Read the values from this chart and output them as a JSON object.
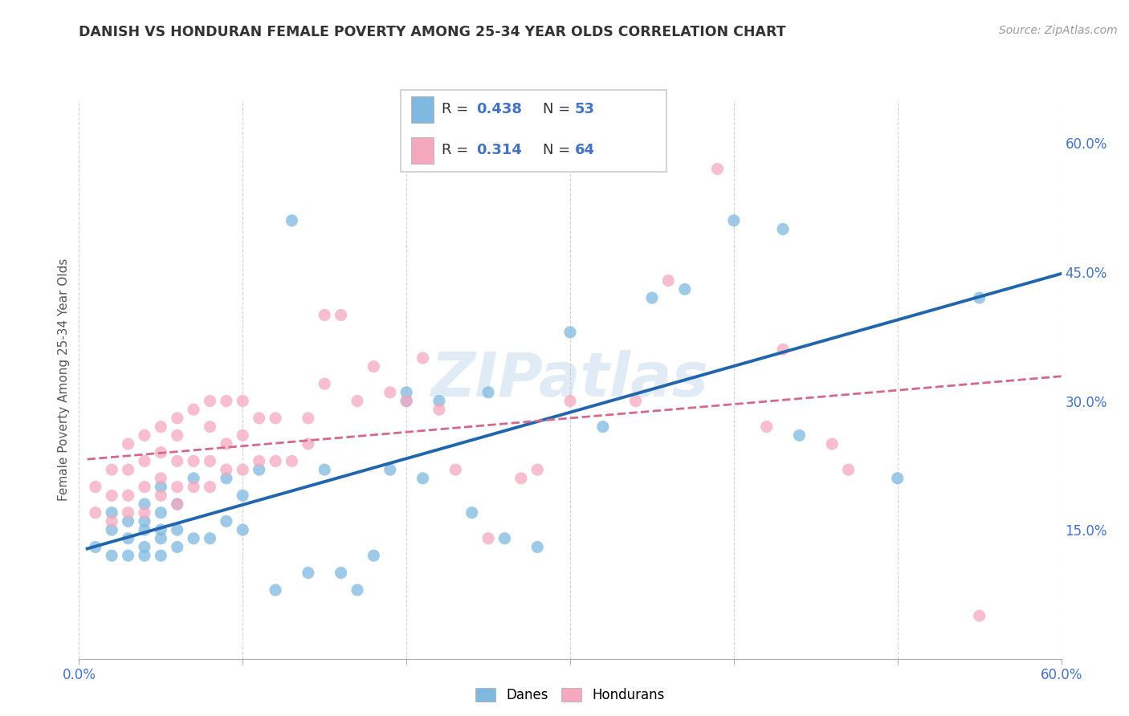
{
  "title": "DANISH VS HONDURAN FEMALE POVERTY AMONG 25-34 YEAR OLDS CORRELATION CHART",
  "source": "Source: ZipAtlas.com",
  "ylabel": "Female Poverty Among 25-34 Year Olds",
  "xlim": [
    0.0,
    0.6
  ],
  "ylim": [
    0.0,
    0.65
  ],
  "danes_color": "#7fb9e0",
  "hondurans_color": "#f4a9bf",
  "danes_line_color": "#2166ac",
  "hondurans_line_color": "#d4698a",
  "R_danes": 0.438,
  "N_danes": 53,
  "R_hondurans": 0.314,
  "N_hondurans": 64,
  "watermark": "ZIPatlas",
  "danes_scatter_x": [
    0.01,
    0.02,
    0.02,
    0.02,
    0.03,
    0.03,
    0.03,
    0.04,
    0.04,
    0.04,
    0.04,
    0.04,
    0.05,
    0.05,
    0.05,
    0.05,
    0.05,
    0.06,
    0.06,
    0.06,
    0.07,
    0.07,
    0.08,
    0.09,
    0.09,
    0.1,
    0.1,
    0.11,
    0.12,
    0.13,
    0.14,
    0.15,
    0.16,
    0.17,
    0.18,
    0.19,
    0.2,
    0.2,
    0.21,
    0.22,
    0.24,
    0.25,
    0.26,
    0.28,
    0.3,
    0.32,
    0.35,
    0.37,
    0.4,
    0.43,
    0.44,
    0.5,
    0.55
  ],
  "danes_scatter_y": [
    0.13,
    0.12,
    0.15,
    0.17,
    0.12,
    0.14,
    0.16,
    0.12,
    0.13,
    0.15,
    0.16,
    0.18,
    0.12,
    0.14,
    0.15,
    0.17,
    0.2,
    0.13,
    0.15,
    0.18,
    0.14,
    0.21,
    0.14,
    0.16,
    0.21,
    0.15,
    0.19,
    0.22,
    0.08,
    0.51,
    0.1,
    0.22,
    0.1,
    0.08,
    0.12,
    0.22,
    0.3,
    0.31,
    0.21,
    0.3,
    0.17,
    0.31,
    0.14,
    0.13,
    0.38,
    0.27,
    0.42,
    0.43,
    0.51,
    0.5,
    0.26,
    0.21,
    0.42
  ],
  "hondurans_scatter_x": [
    0.01,
    0.01,
    0.02,
    0.02,
    0.02,
    0.03,
    0.03,
    0.03,
    0.03,
    0.04,
    0.04,
    0.04,
    0.04,
    0.05,
    0.05,
    0.05,
    0.05,
    0.06,
    0.06,
    0.06,
    0.06,
    0.06,
    0.07,
    0.07,
    0.07,
    0.08,
    0.08,
    0.08,
    0.08,
    0.09,
    0.09,
    0.09,
    0.1,
    0.1,
    0.1,
    0.11,
    0.11,
    0.12,
    0.12,
    0.13,
    0.14,
    0.14,
    0.15,
    0.15,
    0.16,
    0.17,
    0.18,
    0.19,
    0.2,
    0.21,
    0.22,
    0.23,
    0.25,
    0.27,
    0.28,
    0.3,
    0.34,
    0.36,
    0.39,
    0.42,
    0.43,
    0.46,
    0.47,
    0.55
  ],
  "hondurans_scatter_y": [
    0.17,
    0.2,
    0.16,
    0.19,
    0.22,
    0.17,
    0.19,
    0.22,
    0.25,
    0.17,
    0.2,
    0.23,
    0.26,
    0.19,
    0.21,
    0.24,
    0.27,
    0.18,
    0.2,
    0.23,
    0.26,
    0.28,
    0.2,
    0.23,
    0.29,
    0.2,
    0.23,
    0.27,
    0.3,
    0.22,
    0.25,
    0.3,
    0.22,
    0.26,
    0.3,
    0.23,
    0.28,
    0.23,
    0.28,
    0.23,
    0.25,
    0.28,
    0.32,
    0.4,
    0.4,
    0.3,
    0.34,
    0.31,
    0.3,
    0.35,
    0.29,
    0.22,
    0.14,
    0.21,
    0.22,
    0.3,
    0.3,
    0.44,
    0.57,
    0.27,
    0.36,
    0.25,
    0.22,
    0.05
  ]
}
